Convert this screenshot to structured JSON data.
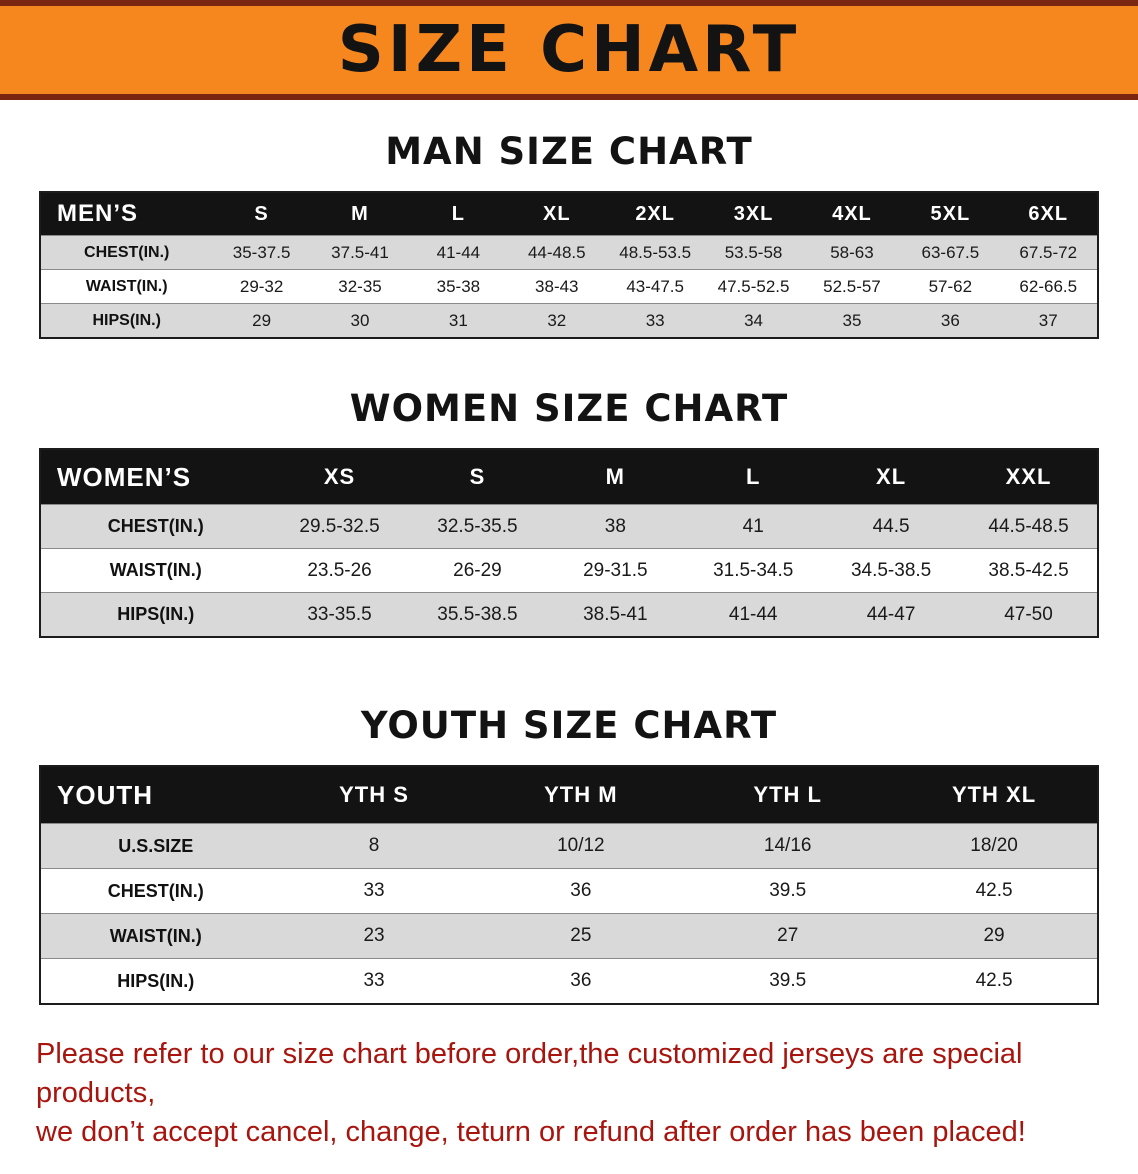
{
  "banner": {
    "title": "SIZE CHART"
  },
  "sections": [
    {
      "heading": "MAN SIZE CHART",
      "table": {
        "header": [
          "MEN’S",
          "S",
          "M",
          "L",
          "XL",
          "2XL",
          "3XL",
          "4XL",
          "5XL",
          "6XL"
        ],
        "rows": [
          [
            "CHEST(IN.)",
            "35-37.5",
            "37.5-41",
            "41-44",
            "44-48.5",
            "48.5-53.5",
            "53.5-58",
            "58-63",
            "63-67.5",
            "67.5-72"
          ],
          [
            "WAIST(IN.)",
            "29-32",
            "32-35",
            "35-38",
            "38-43",
            "43-47.5",
            "47.5-52.5",
            "52.5-57",
            "57-62",
            "62-66.5"
          ],
          [
            "HIPS(IN.)",
            "29",
            "30",
            "31",
            "32",
            "33",
            "34",
            "35",
            "36",
            "37"
          ]
        ]
      }
    },
    {
      "heading": "WOMEN SIZE CHART",
      "table": {
        "header": [
          "WOMEN’S",
          "XS",
          "S",
          "M",
          "L",
          "XL",
          "XXL"
        ],
        "rows": [
          [
            "CHEST(IN.)",
            "29.5-32.5",
            "32.5-35.5",
            "38",
            "41",
            "44.5",
            "44.5-48.5"
          ],
          [
            "WAIST(IN.)",
            "23.5-26",
            "26-29",
            "29-31.5",
            "31.5-34.5",
            "34.5-38.5",
            "38.5-42.5"
          ],
          [
            "HIPS(IN.)",
            "33-35.5",
            "35.5-38.5",
            "38.5-41",
            "41-44",
            "44-47",
            "47-50"
          ]
        ]
      }
    },
    {
      "heading": "YOUTH SIZE CHART",
      "table": {
        "header": [
          "YOUTH",
          "YTH S",
          "YTH M",
          "YTH L",
          "YTH XL"
        ],
        "rows": [
          [
            "U.S.SIZE",
            "8",
            "10/12",
            "14/16",
            "18/20"
          ],
          [
            "CHEST(IN.)",
            "33",
            "36",
            "39.5",
            "42.5"
          ],
          [
            "WAIST(IN.)",
            "23",
            "25",
            "27",
            "29"
          ],
          [
            "HIPS(IN.)",
            "33",
            "36",
            "39.5",
            "42.5"
          ]
        ]
      }
    }
  ],
  "disclaimer": {
    "lines": [
      "Please refer to our size chart before order,the customized jerseys are special products,",
      "we don’t accept cancel, change, teturn or refund after order has been placed!"
    ]
  },
  "colors": {
    "banner_bg": "#f6871f",
    "banner_border": "#7a2610",
    "table_header_bg": "#131313",
    "table_row_alt": "#d9d9d9",
    "disclaimer_text": "#a8150f"
  }
}
